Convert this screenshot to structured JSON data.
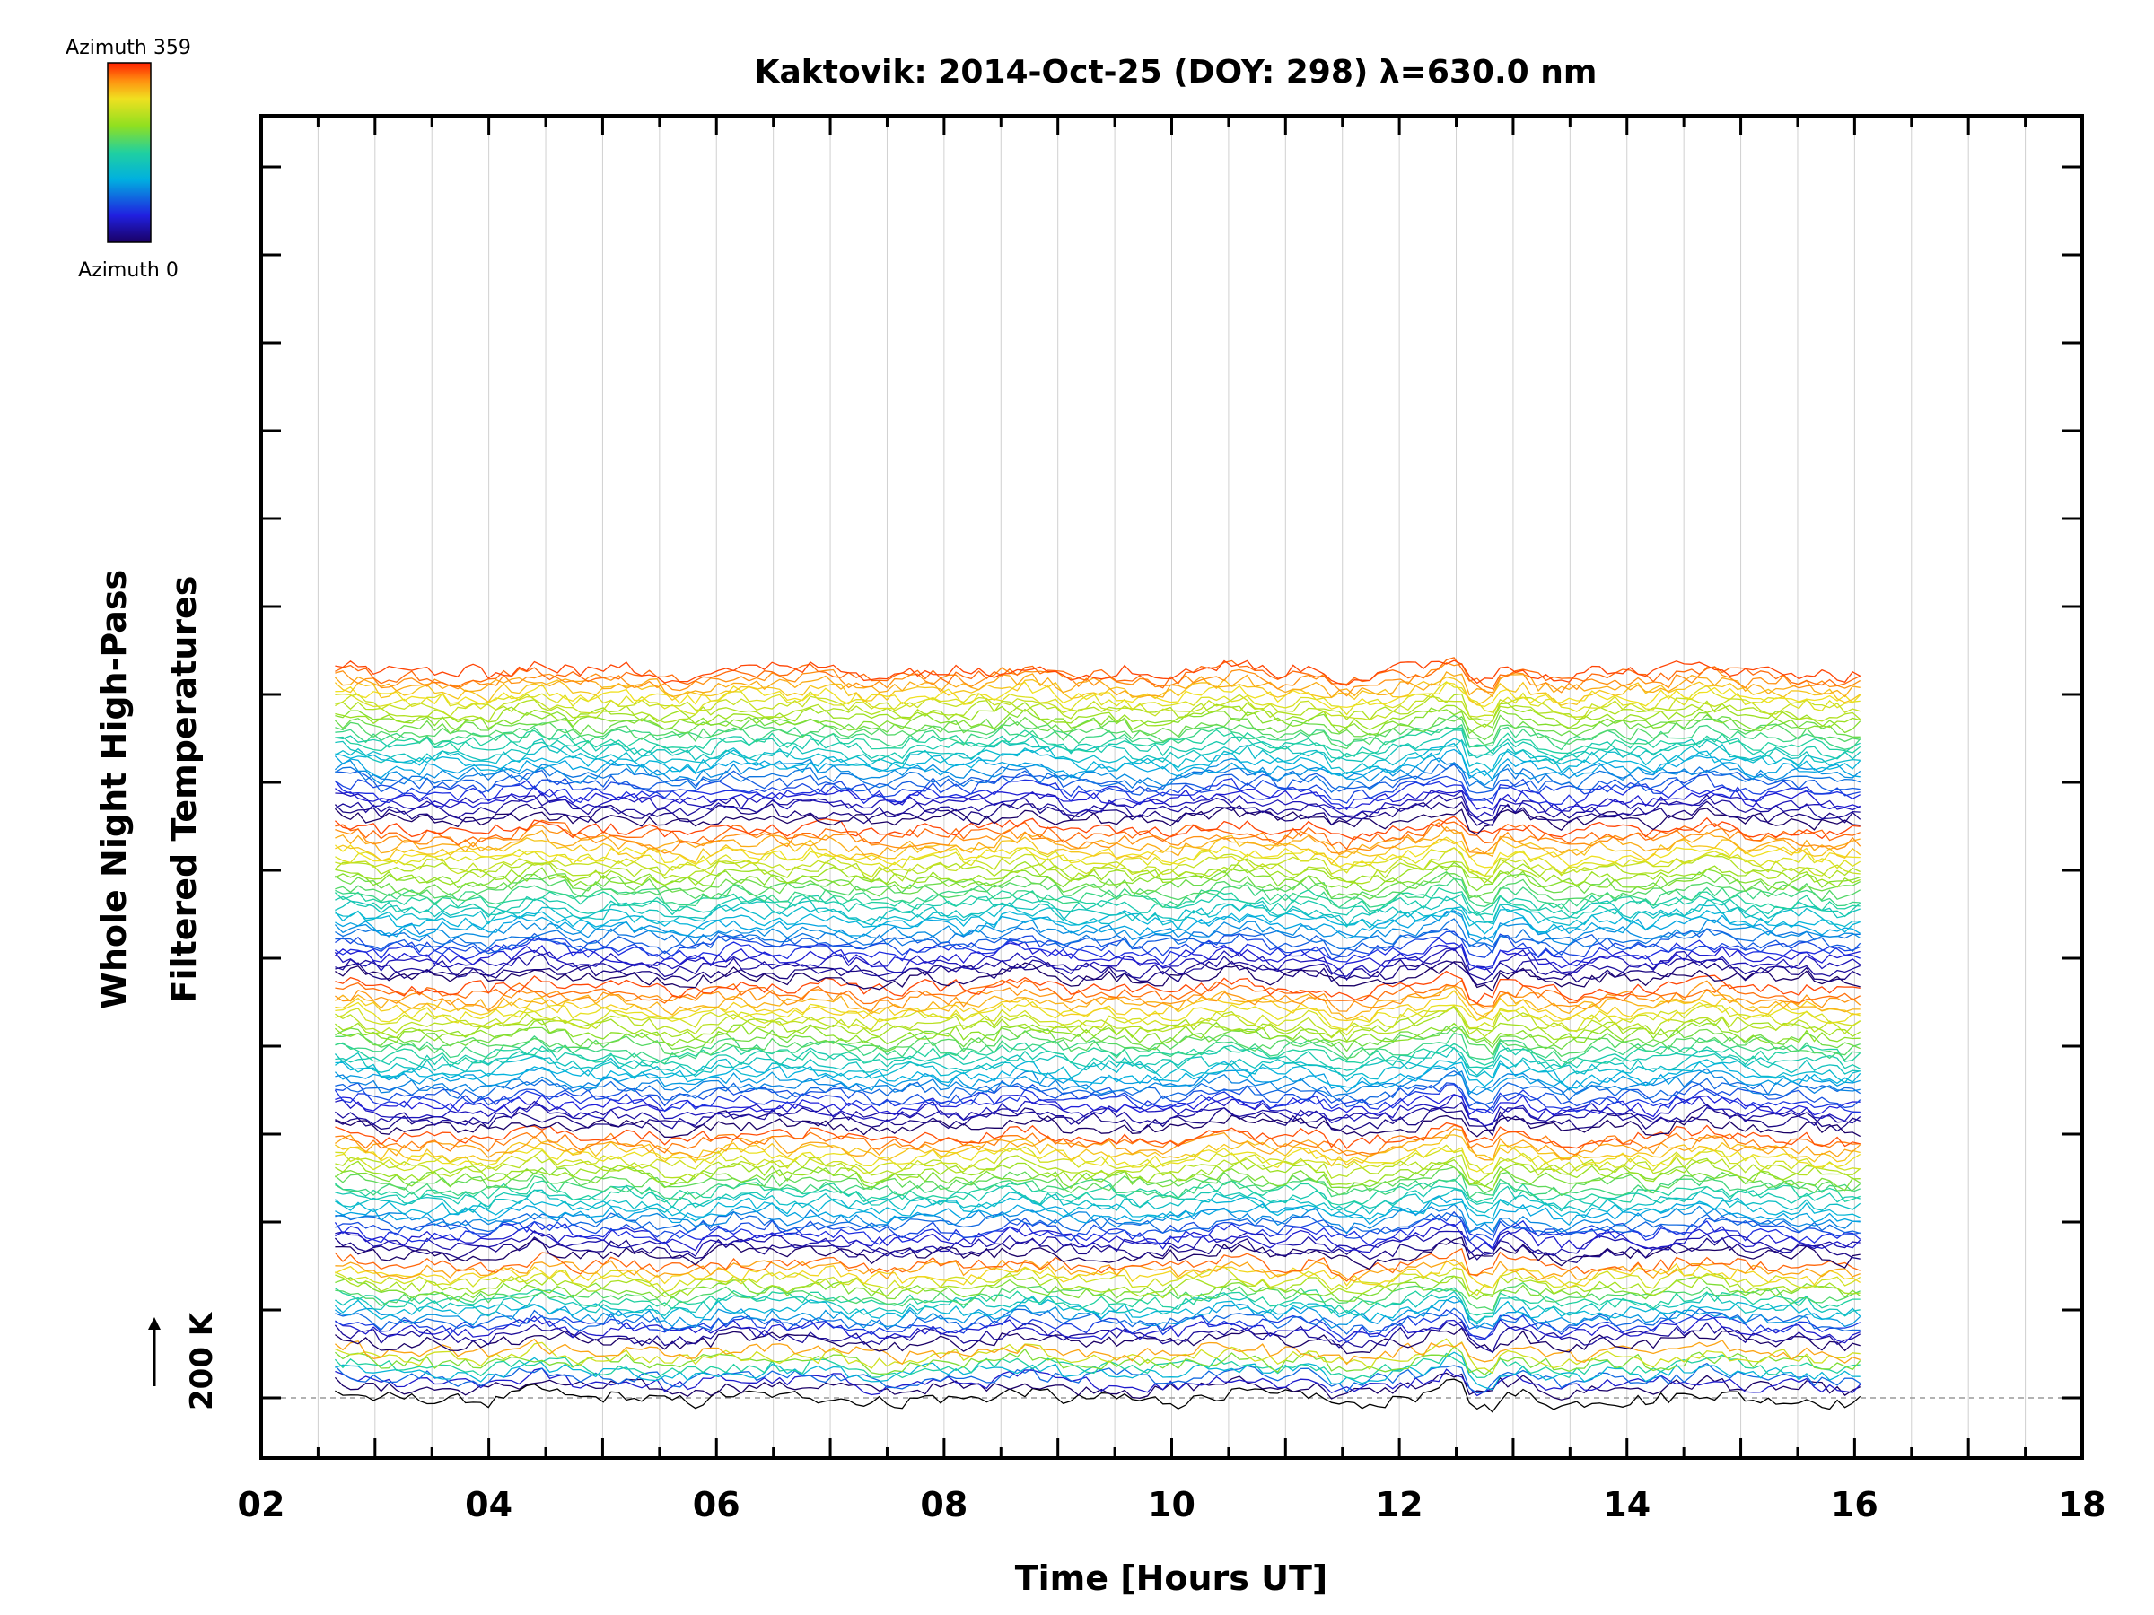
{
  "chart_data": {
    "type": "line",
    "title": "Kaktovik: 2014-Oct-25 (DOY: 298) λ=630.0 nm",
    "xlabel": "Time [Hours UT]",
    "ylabel_lines": [
      "Whole Night High-Pass",
      "Filtered Temperatures"
    ],
    "xlim": [
      2,
      18
    ],
    "x_ticks": [
      "02",
      "04",
      "06",
      "08",
      "10",
      "12",
      "14",
      "16",
      "18"
    ],
    "x_tick_values": [
      2,
      4,
      6,
      8,
      10,
      12,
      14,
      16,
      18
    ],
    "data_time_range": [
      2.65,
      16.05
    ],
    "scale_bar_label": "200 K",
    "colorbar": {
      "top_label": "Azimuth 359",
      "bottom_label": "Azimuth 0",
      "colormap": "rainbow"
    },
    "series_description": "Stacked temperature traces, one per azimuth, in 7 offset groups (zenith rings)",
    "groups": [
      {
        "ring": 1,
        "traces": 1
      },
      {
        "ring": 2,
        "traces": 8
      },
      {
        "ring": 3,
        "traces": 16
      },
      {
        "ring": 4,
        "traces": 24
      },
      {
        "ring": 5,
        "traces": 28
      },
      {
        "ring": 6,
        "traces": 30
      },
      {
        "ring": 7,
        "traces": 30
      }
    ]
  },
  "colors": {
    "axis": "#000000",
    "grid": "#d0d0d0",
    "baseline": "#999999"
  }
}
